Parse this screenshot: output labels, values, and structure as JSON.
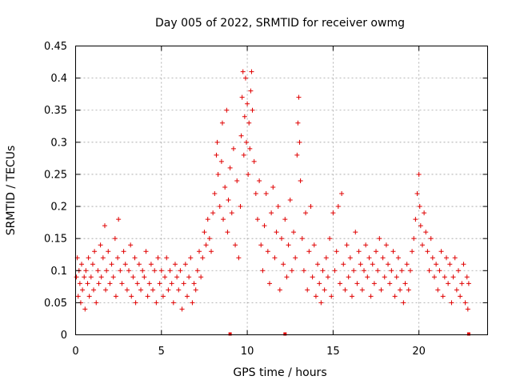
{
  "chart_data": {
    "type": "scatter",
    "title": "Day 005 of 2022, SRMTID for receiver owmg",
    "xlabel": "GPS time / hours",
    "ylabel": "SRMTID / TECUs",
    "xlim": [
      0,
      24
    ],
    "ylim": [
      0,
      0.45
    ],
    "xticks": [
      0,
      5,
      10,
      15,
      20
    ],
    "xtick_labels": [
      "0",
      "5",
      "10",
      "15",
      "20"
    ],
    "yticks": [
      0,
      0.05,
      0.1,
      0.15,
      0.2,
      0.25,
      0.3,
      0.35,
      0.4,
      0.45
    ],
    "ytick_labels": [
      "0",
      "0.05",
      "0.1",
      "0.15",
      "0.2",
      "0.25",
      "0.3",
      "0.35",
      "0.4",
      "0.45"
    ],
    "grid": true,
    "marker": "+",
    "color": "#e00000",
    "series": [
      {
        "name": "SRMTID",
        "envelope_note": "dense point cloud, values given as sampled (hour, TECU) pairs",
        "points": [
          [
            0.05,
            0.09
          ],
          [
            0.1,
            0.12
          ],
          [
            0.15,
            0.06
          ],
          [
            0.2,
            0.1
          ],
          [
            0.25,
            0.08
          ],
          [
            0.3,
            0.05
          ],
          [
            0.35,
            0.11
          ],
          [
            0.4,
            0.07
          ],
          [
            0.5,
            0.09
          ],
          [
            0.55,
            0.04
          ],
          [
            0.6,
            0.1
          ],
          [
            0.7,
            0.08
          ],
          [
            0.75,
            0.12
          ],
          [
            0.8,
            0.06
          ],
          [
            0.9,
            0.09
          ],
          [
            1.0,
            0.11
          ],
          [
            1.05,
            0.07
          ],
          [
            1.1,
            0.13
          ],
          [
            1.2,
            0.05
          ],
          [
            1.3,
            0.1
          ],
          [
            1.35,
            0.08
          ],
          [
            1.45,
            0.14
          ],
          [
            1.5,
            0.09
          ],
          [
            1.6,
            0.12
          ],
          [
            1.7,
            0.17
          ],
          [
            1.75,
            0.07
          ],
          [
            1.8,
            0.1
          ],
          [
            1.9,
            0.13
          ],
          [
            2.0,
            0.08
          ],
          [
            2.1,
            0.11
          ],
          [
            2.2,
            0.09
          ],
          [
            2.3,
            0.15
          ],
          [
            2.35,
            0.06
          ],
          [
            2.45,
            0.12
          ],
          [
            2.5,
            0.18
          ],
          [
            2.6,
            0.1
          ],
          [
            2.7,
            0.08
          ],
          [
            2.8,
            0.13
          ],
          [
            2.9,
            0.11
          ],
          [
            3.0,
            0.07
          ],
          [
            3.1,
            0.1
          ],
          [
            3.2,
            0.14
          ],
          [
            3.25,
            0.06
          ],
          [
            3.35,
            0.09
          ],
          [
            3.45,
            0.12
          ],
          [
            3.5,
            0.05
          ],
          [
            3.6,
            0.08
          ],
          [
            3.7,
            0.11
          ],
          [
            3.8,
            0.07
          ],
          [
            3.9,
            0.1
          ],
          [
            4.0,
            0.09
          ],
          [
            4.1,
            0.13
          ],
          [
            4.2,
            0.06
          ],
          [
            4.3,
            0.08
          ],
          [
            4.4,
            0.11
          ],
          [
            4.5,
            0.07
          ],
          [
            4.6,
            0.1
          ],
          [
            4.7,
            0.05
          ],
          [
            4.8,
            0.12
          ],
          [
            4.9,
            0.08
          ],
          [
            5.0,
            0.1
          ],
          [
            5.1,
            0.06
          ],
          [
            5.2,
            0.09
          ],
          [
            5.3,
            0.12
          ],
          [
            5.4,
            0.07
          ],
          [
            5.5,
            0.1
          ],
          [
            5.6,
            0.08
          ],
          [
            5.7,
            0.05
          ],
          [
            5.8,
            0.11
          ],
          [
            5.9,
            0.09
          ],
          [
            6.0,
            0.07
          ],
          [
            6.1,
            0.1
          ],
          [
            6.2,
            0.04
          ],
          [
            6.3,
            0.08
          ],
          [
            6.4,
            0.11
          ],
          [
            6.5,
            0.06
          ],
          [
            6.6,
            0.09
          ],
          [
            6.7,
            0.12
          ],
          [
            6.8,
            0.05
          ],
          [
            6.9,
            0.08
          ],
          [
            7.0,
            0.07
          ],
          [
            7.1,
            0.1
          ],
          [
            7.2,
            0.13
          ],
          [
            7.3,
            0.09
          ],
          [
            7.4,
            0.12
          ],
          [
            7.5,
            0.16
          ],
          [
            7.6,
            0.14
          ],
          [
            7.7,
            0.18
          ],
          [
            7.8,
            0.15
          ],
          [
            7.9,
            0.13
          ],
          [
            8.0,
            0.19
          ],
          [
            8.1,
            0.22
          ],
          [
            8.2,
            0.28
          ],
          [
            8.25,
            0.3
          ],
          [
            8.3,
            0.25
          ],
          [
            8.4,
            0.2
          ],
          [
            8.5,
            0.27
          ],
          [
            8.55,
            0.33
          ],
          [
            8.6,
            0.18
          ],
          [
            8.7,
            0.23
          ],
          [
            8.8,
            0.35
          ],
          [
            8.85,
            0.16
          ],
          [
            8.9,
            0.21
          ],
          [
            9.0,
            0.26
          ],
          [
            9.1,
            0.19
          ],
          [
            9.2,
            0.29
          ],
          [
            9.3,
            0.14
          ],
          [
            9.4,
            0.24
          ],
          [
            9.5,
            0.12
          ],
          [
            9.6,
            0.2
          ],
          [
            9.65,
            0.31
          ],
          [
            9.7,
            0.37
          ],
          [
            9.75,
            0.41
          ],
          [
            9.8,
            0.28
          ],
          [
            9.85,
            0.34
          ],
          [
            9.9,
            0.4
          ],
          [
            9.95,
            0.3
          ],
          [
            10.0,
            0.36
          ],
          [
            10.05,
            0.25
          ],
          [
            10.1,
            0.33
          ],
          [
            10.15,
            0.29
          ],
          [
            10.2,
            0.38
          ],
          [
            10.25,
            0.41
          ],
          [
            10.3,
            0.35
          ],
          [
            10.4,
            0.27
          ],
          [
            10.5,
            0.22
          ],
          [
            10.6,
            0.18
          ],
          [
            10.7,
            0.24
          ],
          [
            10.8,
            0.14
          ],
          [
            10.9,
            0.1
          ],
          [
            11.0,
            0.17
          ],
          [
            11.1,
            0.22
          ],
          [
            11.2,
            0.13
          ],
          [
            11.3,
            0.08
          ],
          [
            11.4,
            0.19
          ],
          [
            11.5,
            0.23
          ],
          [
            11.6,
            0.12
          ],
          [
            11.7,
            0.16
          ],
          [
            11.8,
            0.2
          ],
          [
            11.9,
            0.07
          ],
          [
            12.0,
            0.15
          ],
          [
            12.1,
            0.11
          ],
          [
            12.2,
            0.18
          ],
          [
            12.3,
            0.09
          ],
          [
            12.4,
            0.14
          ],
          [
            12.5,
            0.21
          ],
          [
            12.6,
            0.1
          ],
          [
            12.7,
            0.16
          ],
          [
            12.8,
            0.12
          ],
          [
            12.9,
            0.28
          ],
          [
            12.95,
            0.33
          ],
          [
            13.0,
            0.37
          ],
          [
            13.05,
            0.3
          ],
          [
            13.1,
            0.24
          ],
          [
            13.2,
            0.15
          ],
          [
            13.3,
            0.1
          ],
          [
            13.4,
            0.19
          ],
          [
            13.5,
            0.07
          ],
          [
            13.6,
            0.13
          ],
          [
            13.7,
            0.2
          ],
          [
            13.8,
            0.09
          ],
          [
            13.9,
            0.14
          ],
          [
            14.0,
            0.06
          ],
          [
            14.1,
            0.11
          ],
          [
            14.2,
            0.08
          ],
          [
            14.3,
            0.05
          ],
          [
            14.4,
            0.1
          ],
          [
            14.5,
            0.07
          ],
          [
            14.6,
            0.12
          ],
          [
            14.7,
            0.09
          ],
          [
            14.8,
            0.15
          ],
          [
            14.9,
            0.06
          ],
          [
            15.0,
            0.19
          ],
          [
            15.1,
            0.1
          ],
          [
            15.2,
            0.13
          ],
          [
            15.3,
            0.2
          ],
          [
            15.4,
            0.08
          ],
          [
            15.5,
            0.22
          ],
          [
            15.6,
            0.11
          ],
          [
            15.7,
            0.07
          ],
          [
            15.8,
            0.14
          ],
          [
            15.9,
            0.09
          ],
          [
            16.0,
            0.12
          ],
          [
            16.1,
            0.06
          ],
          [
            16.2,
            0.1
          ],
          [
            16.3,
            0.16
          ],
          [
            16.4,
            0.08
          ],
          [
            16.5,
            0.13
          ],
          [
            16.6,
            0.11
          ],
          [
            16.7,
            0.07
          ],
          [
            16.8,
            0.1
          ],
          [
            16.9,
            0.14
          ],
          [
            17.0,
            0.09
          ],
          [
            17.1,
            0.12
          ],
          [
            17.2,
            0.06
          ],
          [
            17.3,
            0.11
          ],
          [
            17.4,
            0.08
          ],
          [
            17.5,
            0.13
          ],
          [
            17.6,
            0.1
          ],
          [
            17.7,
            0.15
          ],
          [
            17.8,
            0.07
          ],
          [
            17.9,
            0.12
          ],
          [
            18.0,
            0.09
          ],
          [
            18.1,
            0.14
          ],
          [
            18.2,
            0.11
          ],
          [
            18.3,
            0.08
          ],
          [
            18.4,
            0.1
          ],
          [
            18.5,
            0.13
          ],
          [
            18.6,
            0.06
          ],
          [
            18.7,
            0.09
          ],
          [
            18.8,
            0.12
          ],
          [
            18.9,
            0.07
          ],
          [
            19.0,
            0.1
          ],
          [
            19.1,
            0.05
          ],
          [
            19.2,
            0.08
          ],
          [
            19.3,
            0.11
          ],
          [
            19.4,
            0.07
          ],
          [
            19.5,
            0.1
          ],
          [
            19.6,
            0.13
          ],
          [
            19.7,
            0.15
          ],
          [
            19.8,
            0.18
          ],
          [
            19.9,
            0.22
          ],
          [
            20.0,
            0.25
          ],
          [
            20.05,
            0.2
          ],
          [
            20.1,
            0.17
          ],
          [
            20.2,
            0.14
          ],
          [
            20.3,
            0.19
          ],
          [
            20.4,
            0.16
          ],
          [
            20.5,
            0.13
          ],
          [
            20.6,
            0.1
          ],
          [
            20.7,
            0.15
          ],
          [
            20.8,
            0.12
          ],
          [
            20.9,
            0.09
          ],
          [
            21.0,
            0.11
          ],
          [
            21.1,
            0.07
          ],
          [
            21.2,
            0.1
          ],
          [
            21.3,
            0.13
          ],
          [
            21.4,
            0.06
          ],
          [
            21.5,
            0.09
          ],
          [
            21.6,
            0.12
          ],
          [
            21.7,
            0.08
          ],
          [
            21.8,
            0.11
          ],
          [
            21.9,
            0.05
          ],
          [
            22.0,
            0.09
          ],
          [
            22.1,
            0.12
          ],
          [
            22.2,
            0.07
          ],
          [
            22.3,
            0.1
          ],
          [
            22.4,
            0.06
          ],
          [
            22.5,
            0.08
          ],
          [
            22.6,
            0.11
          ],
          [
            22.7,
            0.05
          ],
          [
            22.8,
            0.09
          ],
          [
            22.85,
            0.04
          ],
          [
            22.9,
            0.08
          ]
        ]
      }
    ],
    "baseline_markers_hours": [
      9.0,
      12.2,
      22.9
    ]
  }
}
